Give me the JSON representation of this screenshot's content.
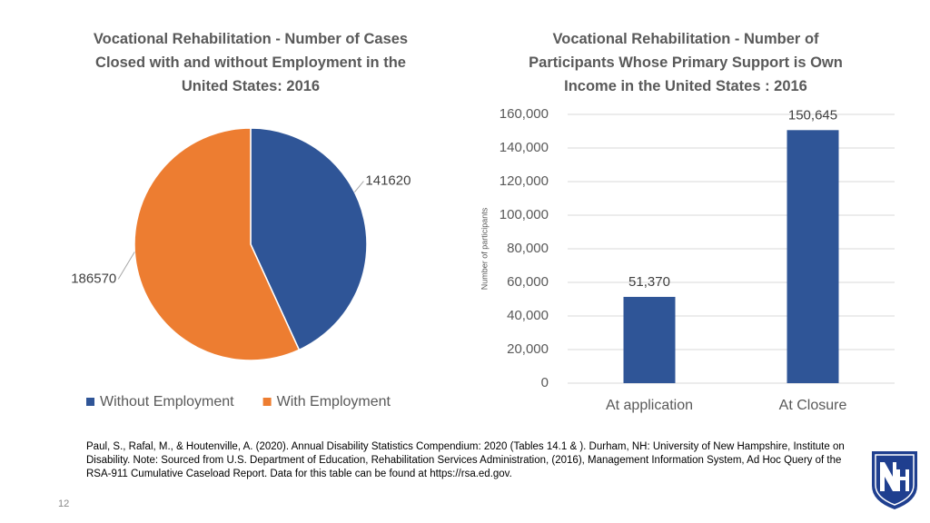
{
  "chart_data": [
    {
      "type": "pie",
      "title": "Vocational Rehabilitation - Number of Cases Closed with and without Employment in the United States: 2016",
      "categories": [
        "Without Employment",
        "With Employment"
      ],
      "values": [
        141620,
        186570
      ],
      "colors": [
        "#2f5597",
        "#ed7d31"
      ]
    },
    {
      "type": "bar",
      "title": "Vocational Rehabilitation - Number of Participants Whose Primary Support is Own Income in the United States : 2016",
      "y_label": "Number of participants",
      "categories": [
        "At application",
        "At Closure"
      ],
      "values": [
        51370,
        150645
      ],
      "value_labels": [
        "51,370",
        "150,645"
      ],
      "color": "#2f5597",
      "ylim": [
        0,
        160000
      ],
      "yticks": [
        0,
        {
          "value": 20000,
          "label": "20,000"
        },
        {
          "value": 40000,
          "label": "40,000"
        },
        {
          "value": 60000,
          "label": "60,000"
        },
        {
          "value": 80000,
          "label": "80,000"
        },
        {
          "value": 100000,
          "label": "100,000"
        },
        {
          "value": 120000,
          "label": "120,000"
        },
        {
          "value": 140000,
          "label": "140,000"
        },
        {
          "value": 160000,
          "label": "160,000"
        }
      ],
      "grid": true
    }
  ],
  "footnote": "Paul, S., Rafal, M., & Houtenville, A. (2020). Annual Disability Statistics Compendium: 2020 (Tables 14.1 & ). Durham, NH: University of New Hampshire, Institute on Disability. Note: Sourced from U.S. Department of Education, Rehabilitation Services Administration, (2016), Management Information System, Ad Hoc Query of the RSA-911 Cumulative Caseload Report. Data for this table can be found at https://rsa.ed.gov.",
  "page_number": "12"
}
